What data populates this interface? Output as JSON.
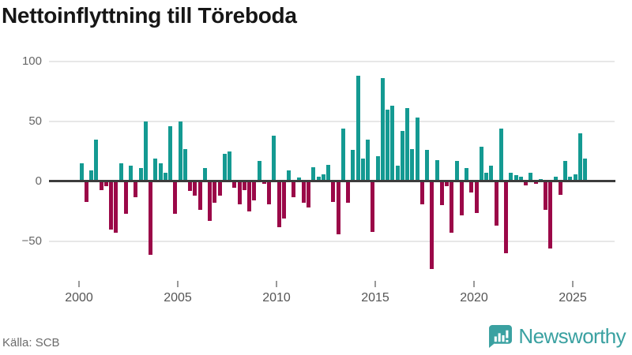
{
  "header": {
    "title": "Nettoinflyttning till Töreboda"
  },
  "footer": {
    "source": "Källa: SCB",
    "brand": "Newsworthy"
  },
  "colors": {
    "positive": "#149a92",
    "negative": "#9b0848",
    "grid": "#e7e7e7",
    "zero_line": "#3c3c3c",
    "axis_text": "#666666",
    "title_text": "#161616",
    "brand_teal": "#3aa1a1"
  },
  "chart_data": {
    "type": "bar",
    "title": "Nettoinflyttning till Töreboda",
    "x_unit": "quarter",
    "start_year": 2000,
    "x_ticks": [
      2000,
      2005,
      2010,
      2015,
      2020,
      2025
    ],
    "x_tick_labels": [
      "2000",
      "2005",
      "2010",
      "2015",
      "2020",
      "2025"
    ],
    "y_ticks": [
      100,
      50,
      0,
      -50
    ],
    "y_tick_labels": [
      "100",
      "50",
      "0",
      "−50"
    ],
    "ylim": [
      -79,
      105
    ],
    "grid": true,
    "legend": false,
    "values": [
      15,
      -17,
      9,
      35,
      -7,
      -4,
      -40,
      -43,
      15,
      -27,
      13,
      -13,
      11,
      50,
      -61,
      19,
      15,
      7,
      46,
      -27,
      50,
      27,
      -8,
      -12,
      -24,
      11,
      -33,
      -18,
      -12,
      23,
      25,
      -5,
      -19,
      -7,
      -25,
      -16,
      17,
      -2,
      -19,
      38,
      -38,
      -31,
      9,
      -13,
      3,
      -18,
      -22,
      12,
      4,
      6,
      14,
      -17,
      -44,
      44,
      -18,
      26,
      88,
      19,
      35,
      -42,
      21,
      86,
      60,
      63,
      13,
      42,
      61,
      27,
      53,
      -19,
      26,
      -73,
      18,
      -20,
      -4,
      -43,
      17,
      -28,
      11,
      -9,
      -26,
      29,
      7,
      13,
      -37,
      44,
      -60,
      7,
      5,
      4,
      -3,
      7,
      -2,
      2,
      -24,
      -56,
      4,
      -11,
      17,
      4,
      6,
      40,
      19
    ]
  }
}
